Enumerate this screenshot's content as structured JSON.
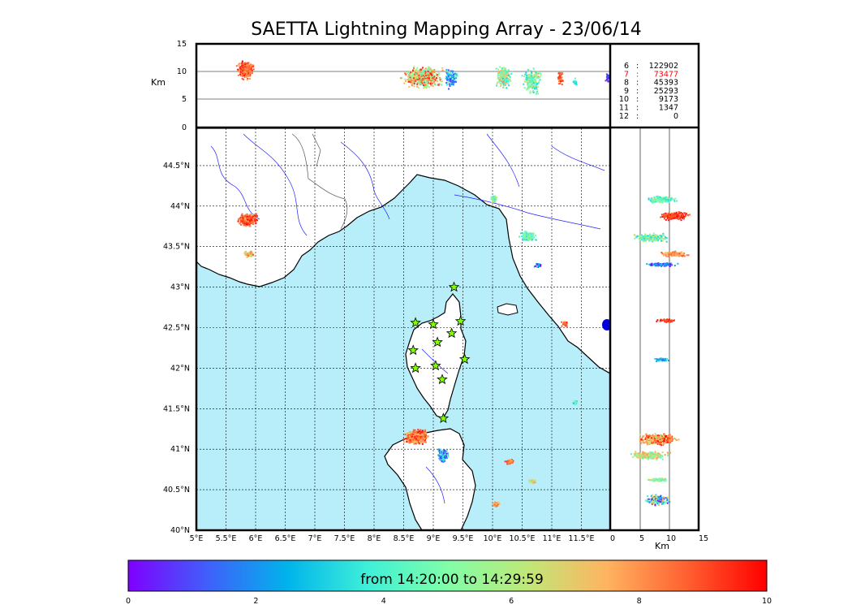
{
  "title": "SAETTA Lightning Mapping Array - 23/06/14",
  "top_panel": {
    "ylabel": "Km",
    "yticks": [
      "15",
      "10",
      "5",
      "0"
    ],
    "counts": [
      {
        "label": "6",
        "value": "122902",
        "color": "#000000"
      },
      {
        "label": "7",
        "value": "73477",
        "color": "#ff0000"
      },
      {
        "label": "8",
        "value": "45393",
        "color": "#000000"
      },
      {
        "label": "9",
        "value": "25293",
        "color": "#000000"
      },
      {
        "label": "10",
        "value": "9173",
        "color": "#000000"
      },
      {
        "label": "11",
        "value": "1347",
        "color": "#000000"
      },
      {
        "label": "12",
        "value": "0",
        "color": "#000000"
      }
    ]
  },
  "map": {
    "lon_ticks": [
      "5°E",
      "5.5°E",
      "6°E",
      "6.5°E",
      "7°E",
      "7.5°E",
      "8°E",
      "8.5°E",
      "9°E",
      "9.5°E",
      "10°E",
      "10.5°E",
      "11°E",
      "11.5°E"
    ],
    "lat_ticks": [
      "44.5°N",
      "44°N",
      "43.5°N",
      "43°N",
      "42.5°N",
      "42°N",
      "41.5°N",
      "41°N",
      "40.5°N",
      "40°N"
    ],
    "sea_color": "#b8eefa",
    "land_color": "#ffffff",
    "station_color": "#7fff00",
    "stations": [
      {
        "lon": 9.35,
        "lat": 43.0
      },
      {
        "lon": 8.7,
        "lat": 42.56
      },
      {
        "lon": 9.0,
        "lat": 42.54
      },
      {
        "lon": 9.46,
        "lat": 42.58
      },
      {
        "lon": 9.31,
        "lat": 42.43
      },
      {
        "lon": 9.07,
        "lat": 42.32
      },
      {
        "lon": 8.66,
        "lat": 42.22
      },
      {
        "lon": 9.53,
        "lat": 42.11
      },
      {
        "lon": 8.7,
        "lat": 42.0
      },
      {
        "lon": 9.04,
        "lat": 42.03
      },
      {
        "lon": 9.15,
        "lat": 41.86
      },
      {
        "lon": 9.17,
        "lat": 41.38
      }
    ]
  },
  "side_panel": {
    "xticks": [
      "0",
      "5",
      "10",
      "15"
    ],
    "xlabel": "Km"
  },
  "colorbar": {
    "label": "from 14:20:00 to 14:29:59",
    "ticks": [
      "0",
      "2",
      "4",
      "6",
      "8",
      "10"
    ],
    "stops": [
      "#7f00ff",
      "#3f60fa",
      "#00b4eb",
      "#3ff0d8",
      "#80fea8",
      "#c0e878",
      "#ffb360",
      "#ff6030",
      "#ff0000"
    ]
  }
}
